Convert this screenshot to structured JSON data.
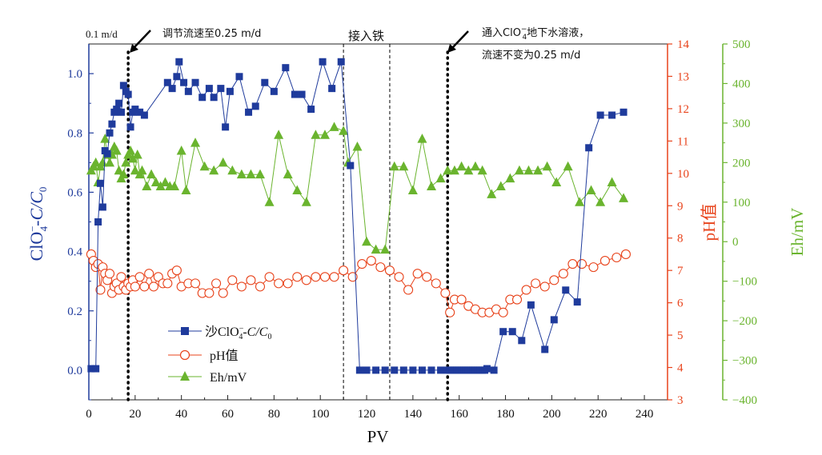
{
  "chart_data": {
    "type": "line",
    "x_axis": {
      "label": "PV",
      "range": [
        0,
        250
      ],
      "ticks": [
        "0",
        "20",
        "40",
        "60",
        "80",
        "100",
        "120",
        "140",
        "160",
        "180",
        "200",
        "220",
        "240"
      ]
    },
    "left_axis": {
      "label_main": "ClO",
      "label_sub": "4",
      "label_sup": "−",
      "label_rest": "-C/C",
      "label_sub0": "0",
      "range": [
        -0.1,
        1.1
      ],
      "ticks": [
        "0.0",
        "0.2",
        "0.4",
        "0.6",
        "0.8",
        "1.0"
      ],
      "color": "#1f3b9c"
    },
    "ph_axis": {
      "label": "pH值",
      "range": [
        3,
        14
      ],
      "ticks": [
        "3",
        "4",
        "5",
        "6",
        "7",
        "8",
        "9",
        "10",
        "11",
        "12",
        "13",
        "14"
      ],
      "color": "#e8431b"
    },
    "eh_axis": {
      "label": "Eh/mV",
      "range": [
        -400,
        500
      ],
      "ticks": [
        "−400",
        "−300",
        "−200",
        "−100",
        "0",
        "100",
        "200",
        "300",
        "400",
        "500"
      ],
      "color": "#6ab42e"
    },
    "series": [
      {
        "name": "沙ClO₄⁻-C/C₀",
        "axis": "left",
        "color": "#1f3b9c",
        "marker": "square",
        "x": [
          1,
          3,
          4,
          5,
          6,
          7,
          8,
          9,
          10,
          11,
          12,
          13,
          14,
          15,
          16,
          17,
          18,
          19,
          20,
          22,
          24,
          34,
          36,
          38,
          39,
          41,
          43,
          46,
          49,
          52,
          54,
          57,
          59,
          61,
          65,
          69,
          72,
          76,
          80,
          85,
          89,
          92,
          96,
          101,
          105,
          109,
          113,
          117,
          120,
          124,
          128,
          132,
          136,
          140,
          144,
          148,
          152,
          155,
          156,
          157,
          158,
          159,
          160,
          161,
          162,
          163,
          164,
          165,
          166,
          167,
          168,
          169,
          170,
          171,
          172,
          175,
          179,
          183,
          187,
          191,
          197,
          201,
          206,
          211,
          216,
          221,
          226,
          231
        ],
        "y": [
          0.005,
          0.005,
          0.5,
          0.63,
          0.55,
          0.74,
          0.73,
          0.8,
          0.83,
          0.87,
          0.88,
          0.9,
          0.87,
          0.96,
          0.94,
          0.93,
          0.82,
          0.87,
          0.88,
          0.87,
          0.86,
          0.97,
          0.95,
          0.99,
          1.04,
          0.97,
          0.94,
          0.97,
          0.92,
          0.95,
          0.92,
          0.95,
          0.82,
          0.94,
          0.99,
          0.87,
          0.89,
          0.97,
          0.94,
          1.02,
          0.93,
          0.93,
          0.88,
          1.04,
          0.95,
          1.04,
          0.69,
          0.0,
          0.0,
          0.0,
          0.0,
          0.0,
          0.0,
          0.0,
          0.0,
          0.0,
          0.0,
          0.0,
          0.0,
          0.0,
          0.0,
          0.0,
          0.0,
          0.0,
          0.0,
          0.0,
          0.0,
          0.0,
          0.0,
          0.0,
          0.0,
          0.0,
          0.0,
          0.0,
          0.005,
          0.0,
          0.13,
          0.13,
          0.1,
          0.22,
          0.07,
          0.17,
          0.27,
          0.23,
          0.75,
          0.86,
          0.86,
          0.87
        ]
      },
      {
        "name": "pH值",
        "axis": "ph",
        "color": "#e8431b",
        "marker": "circle",
        "x": [
          1,
          2,
          3,
          4,
          5,
          6,
          7,
          8,
          9,
          10,
          11,
          12,
          13,
          14,
          15,
          16,
          17,
          18,
          19,
          20,
          22,
          24,
          26,
          28,
          30,
          32,
          34,
          36,
          38,
          40,
          43,
          46,
          49,
          52,
          55,
          58,
          62,
          66,
          70,
          74,
          78,
          82,
          86,
          90,
          94,
          98,
          102,
          106,
          110,
          114,
          118,
          122,
          126,
          130,
          134,
          138,
          142,
          146,
          150,
          154,
          156,
          158,
          161,
          164,
          167,
          170,
          173,
          176,
          179,
          182,
          185,
          189,
          193,
          197,
          201,
          205,
          209,
          213,
          218,
          223,
          228,
          232
        ],
        "y": [
          7.5,
          7.3,
          7.1,
          7.2,
          6.4,
          7.1,
          6.9,
          6.7,
          6.9,
          6.3,
          6.5,
          6.6,
          6.4,
          6.8,
          6.5,
          6.4,
          6.6,
          6.5,
          6.7,
          6.5,
          6.8,
          6.5,
          6.9,
          6.5,
          6.8,
          6.6,
          6.6,
          6.9,
          7.0,
          6.5,
          6.6,
          6.6,
          6.3,
          6.3,
          6.6,
          6.3,
          6.7,
          6.5,
          6.7,
          6.5,
          6.8,
          6.6,
          6.6,
          6.8,
          6.7,
          6.8,
          6.8,
          6.8,
          7.0,
          6.8,
          7.2,
          7.3,
          7.1,
          7.0,
          6.8,
          6.4,
          6.9,
          6.8,
          6.6,
          6.3,
          5.7,
          6.1,
          6.1,
          5.9,
          5.8,
          5.7,
          5.7,
          5.8,
          5.7,
          6.1,
          6.1,
          6.4,
          6.6,
          6.5,
          6.7,
          6.9,
          7.2,
          7.2,
          7.1,
          7.3,
          7.4,
          7.5
        ]
      },
      {
        "name": "Eh/mV",
        "axis": "eh",
        "color": "#6ab42e",
        "marker": "triangle",
        "x": [
          1,
          2,
          3,
          4,
          5,
          6,
          7,
          8,
          9,
          10,
          11,
          12,
          13,
          14,
          15,
          16,
          17,
          18,
          19,
          20,
          21,
          22,
          23,
          25,
          27,
          29,
          31,
          33,
          35,
          37,
          40,
          42,
          46,
          50,
          54,
          58,
          62,
          66,
          70,
          74,
          78,
          82,
          86,
          90,
          94,
          98,
          102,
          106,
          110,
          112,
          116,
          120,
          124,
          128,
          132,
          136,
          140,
          144,
          148,
          152,
          155,
          158,
          161,
          164,
          167,
          170,
          174,
          178,
          182,
          186,
          190,
          194,
          198,
          202,
          207,
          212,
          217,
          221,
          226,
          231
        ],
        "y": [
          180,
          190,
          200,
          150,
          190,
          200,
          260,
          220,
          200,
          220,
          240,
          230,
          180,
          160,
          170,
          200,
          220,
          230,
          210,
          180,
          220,
          170,
          180,
          140,
          170,
          150,
          140,
          150,
          140,
          140,
          230,
          130,
          250,
          190,
          180,
          200,
          180,
          170,
          170,
          170,
          100,
          270,
          170,
          130,
          100,
          270,
          270,
          290,
          280,
          200,
          240,
          0,
          -20,
          -20,
          190,
          190,
          130,
          260,
          140,
          160,
          180,
          180,
          190,
          180,
          190,
          180,
          120,
          140,
          160,
          180,
          180,
          180,
          190,
          150,
          190,
          100,
          130,
          100,
          150,
          110
        ]
      }
    ],
    "legend": {
      "position": "bottom-left",
      "items": [
        {
          "pre": "沙ClO",
          "sub": "4",
          "sup": "−",
          "post": "-C/C",
          "post_sub": "0"
        },
        {
          "text": "pH值"
        },
        {
          "text": "Eh/mV"
        }
      ]
    },
    "annotations": {
      "flow_start": "0.1 m/d",
      "flow_adjust": "调节流速至0.25 m/d",
      "iron": "接入铁",
      "inject_pre": "通入ClO",
      "inject_post": "地下水溶液，",
      "inject_sub": "4",
      "inject_sup": "−",
      "flow_keep": "流速不变为0.25 m/d"
    },
    "markers_x": [
      17,
      110,
      130,
      155
    ]
  }
}
